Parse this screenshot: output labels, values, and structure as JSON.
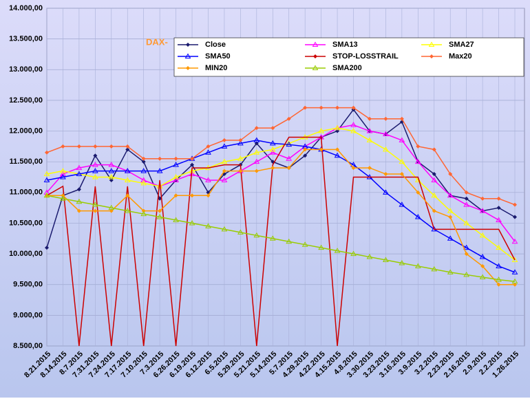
{
  "chart_data": {
    "type": "line",
    "title": "DAX-",
    "categories": [
      "8.21.2015",
      "8.14.2015",
      "8.7.2015",
      "7.31.2015",
      "7.24.2015",
      "7.17.2015",
      "7.10.2015",
      "7.3.2015",
      "6.26.2015",
      "6.19.2015",
      "6.12.2015",
      "6.5.2015",
      "5.29.2015",
      "5.21.2015",
      "5.14.2015",
      "5.7.2015",
      "4.29.2015",
      "4.22.2015",
      "4.15.2015",
      "4.8.2015",
      "3.30.2015",
      "3.23.2015",
      "3.16.2015",
      "3.9.2015",
      "3.2.2015",
      "2.23.2015",
      "2.16.2015",
      "2.9.2015",
      "2.2.2015",
      "1.26.2015"
    ],
    "ylim": [
      8500,
      14000
    ],
    "yticks": [
      {
        "value": 8500,
        "label": "8.500,00"
      },
      {
        "value": 9000,
        "label": "9.000,00"
      },
      {
        "value": 9500,
        "label": "9.500,00"
      },
      {
        "value": 10000,
        "label": "10.000,00"
      },
      {
        "value": 10500,
        "label": "10.500,00"
      },
      {
        "value": 11000,
        "label": "11.000,00"
      },
      {
        "value": 11500,
        "label": "11.500,00"
      },
      {
        "value": 12000,
        "label": "12.000,00"
      },
      {
        "value": 12500,
        "label": "12.500,00"
      },
      {
        "value": 13000,
        "label": "13.000,00"
      },
      {
        "value": 13500,
        "label": "13.500,00"
      },
      {
        "value": 14000,
        "label": "14.000,00"
      }
    ],
    "grid": true,
    "series": [
      {
        "name": "Close",
        "color": "#1a1a6e",
        "marker": "diamond",
        "values": [
          10100,
          10950,
          11050,
          11600,
          11200,
          11700,
          11500,
          10900,
          11200,
          11450,
          11000,
          11300,
          11450,
          11800,
          11500,
          11400,
          11600,
          11900,
          12000,
          12350,
          12000,
          11950,
          12150,
          11500,
          11300,
          10950,
          10900,
          10700,
          10750,
          10600
        ]
      },
      {
        "name": "SMA13",
        "color": "#ff00ff",
        "marker": "triangle",
        "values": [
          11000,
          11300,
          11400,
          11450,
          11450,
          11350,
          11200,
          11100,
          11200,
          11300,
          11200,
          11200,
          11350,
          11500,
          11650,
          11550,
          11750,
          11900,
          12050,
          12100,
          12000,
          11950,
          11850,
          11500,
          11200,
          10950,
          10800,
          10700,
          10550,
          10200
        ]
      },
      {
        "name": "SMA27",
        "color": "#ffff00",
        "marker": "triangle",
        "values": [
          11300,
          11350,
          11300,
          11250,
          11250,
          11200,
          11150,
          11100,
          11250,
          11350,
          11400,
          11500,
          11550,
          11650,
          11700,
          11800,
          11900,
          12000,
          12050,
          12000,
          11850,
          11700,
          11500,
          11200,
          10950,
          10700,
          10500,
          10300,
          10100,
          9900
        ]
      },
      {
        "name": "SMA50",
        "color": "#0000ff",
        "marker": "triangle",
        "values": [
          11200,
          11250,
          11300,
          11350,
          11350,
          11350,
          11350,
          11350,
          11450,
          11550,
          11650,
          11750,
          11800,
          11850,
          11800,
          11780,
          11750,
          11700,
          11600,
          11450,
          11250,
          11000,
          10800,
          10600,
          10400,
          10250,
          10100,
          9950,
          9800,
          9700
        ]
      },
      {
        "name": "STOP-LOSSTRAIL",
        "color": "#cc0000",
        "marker": "none",
        "values": [
          10950,
          11100,
          8500,
          11100,
          8500,
          11100,
          8500,
          11200,
          8500,
          11400,
          11400,
          11450,
          11450,
          8500,
          11450,
          11900,
          11900,
          11900,
          8500,
          11250,
          11250,
          11250,
          11250,
          11250,
          10400,
          10400,
          10400,
          10400,
          10400,
          9900
        ]
      },
      {
        "name": "Max20",
        "color": "#ff6633",
        "marker": "diamond",
        "values": [
          11650,
          11750,
          11750,
          11750,
          11750,
          11750,
          11550,
          11550,
          11550,
          11550,
          11750,
          11850,
          11850,
          12050,
          12050,
          12200,
          12380,
          12380,
          12380,
          12380,
          12200,
          12200,
          12200,
          11750,
          11700,
          11300,
          11000,
          10900,
          10900,
          10800
        ]
      },
      {
        "name": "MIN20",
        "color": "#ff9900",
        "marker": "diamond",
        "values": [
          10950,
          10950,
          10700,
          10700,
          10700,
          10950,
          10700,
          10700,
          10950,
          10950,
          10950,
          11350,
          11350,
          11350,
          11400,
          11400,
          11700,
          11700,
          11700,
          11400,
          11400,
          11300,
          11300,
          11000,
          10700,
          10600,
          10000,
          9800,
          9500,
          9500
        ]
      },
      {
        "name": "SMA200",
        "color": "#99cc00",
        "marker": "triangle",
        "values": [
          10950,
          10900,
          10850,
          10800,
          10750,
          10700,
          10650,
          10600,
          10550,
          10500,
          10450,
          10400,
          10350,
          10300,
          10250,
          10200,
          10150,
          10100,
          10050,
          10000,
          9950,
          9900,
          9850,
          9800,
          9750,
          9700,
          9660,
          9620,
          9580,
          9550
        ]
      }
    ]
  }
}
